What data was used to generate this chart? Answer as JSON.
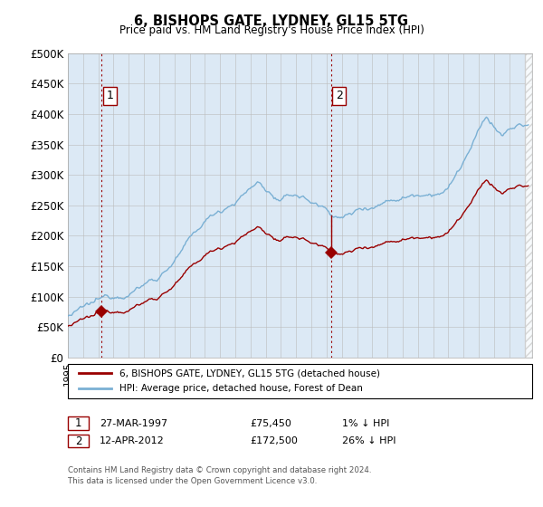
{
  "title": "6, BISHOPS GATE, LYDNEY, GL15 5TG",
  "subtitle": "Price paid vs. HM Land Registry's House Price Index (HPI)",
  "ylabel_ticks": [
    "£0",
    "£50K",
    "£100K",
    "£150K",
    "£200K",
    "£250K",
    "£300K",
    "£350K",
    "£400K",
    "£450K",
    "£500K"
  ],
  "ytick_vals": [
    0,
    50000,
    100000,
    150000,
    200000,
    250000,
    300000,
    350000,
    400000,
    450000,
    500000
  ],
  "ylim": [
    0,
    500000
  ],
  "xlim_start": 1995.0,
  "xlim_end": 2025.5,
  "sale1_x": 1997.22,
  "sale1_y": 75450,
  "sale2_x": 2012.28,
  "sale2_y": 172500,
  "sale1_label": "1",
  "sale2_label": "2",
  "legend_line1": "6, BISHOPS GATE, LYDNEY, GL15 5TG (detached house)",
  "legend_line2": "HPI: Average price, detached house, Forest of Dean",
  "table_row1_num": "1",
  "table_row1_date": "27-MAR-1997",
  "table_row1_price": "£75,450",
  "table_row1_hpi": "1% ↓ HPI",
  "table_row2_num": "2",
  "table_row2_date": "12-APR-2012",
  "table_row2_price": "£172,500",
  "table_row2_hpi": "26% ↓ HPI",
  "footer": "Contains HM Land Registry data © Crown copyright and database right 2024.\nThis data is licensed under the Open Government Licence v3.0.",
  "red_color": "#990000",
  "blue_color": "#7ab0d4",
  "grid_color": "#bbbbbb",
  "bg_color": "#ffffff",
  "plot_bg_color": "#dce9f5",
  "hatch_color": "#cccccc"
}
